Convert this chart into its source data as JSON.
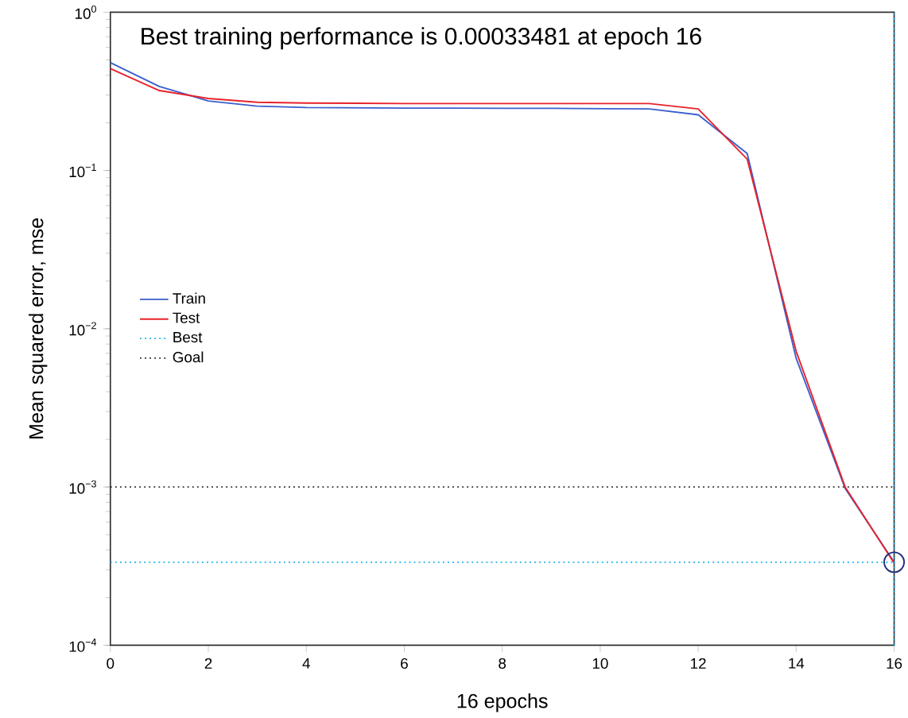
{
  "chart_data": {
    "type": "line",
    "title": "Best training performance is 0.00033481 at epoch 16",
    "xlabel": "16 epochs",
    "ylabel": "Mean squared error, mse",
    "log": "y",
    "xlim": [
      0,
      16
    ],
    "ylim": [
      0.0001,
      1
    ],
    "xticks": [
      0,
      2,
      4,
      6,
      8,
      10,
      12,
      14,
      16
    ],
    "yticks": [
      {
        "value": 0.0001,
        "label": "10$^{−4}$"
      },
      {
        "value": 0.001,
        "label": "10$^{−3}$"
      },
      {
        "value": 0.01,
        "label": "10$^{−2}$"
      },
      {
        "value": 0.1,
        "label": "10$^{−1}$"
      },
      {
        "value": 1,
        "label": "10$^{0}$"
      }
    ],
    "legend": "left",
    "x": [
      0,
      1,
      2,
      3,
      4,
      5,
      6,
      7,
      8,
      9,
      10,
      11,
      12,
      13,
      14,
      15,
      16
    ],
    "series": [
      {
        "name": "Train",
        "color": "#3a5fcd",
        "values": [
          0.48,
          0.34,
          0.275,
          0.255,
          0.25,
          0.249,
          0.248,
          0.248,
          0.247,
          0.247,
          0.246,
          0.245,
          0.225,
          0.128,
          0.0065,
          0.00098,
          0.00033481
        ]
      },
      {
        "name": "Test",
        "color": "#e8222a",
        "values": [
          0.44,
          0.32,
          0.285,
          0.27,
          0.267,
          0.266,
          0.265,
          0.265,
          0.265,
          0.265,
          0.265,
          0.265,
          0.245,
          0.118,
          0.0072,
          0.001,
          0.00033
        ]
      },
      {
        "type": "scatter",
        "marker": "circle",
        "color": "#1f2a7a",
        "x": [
          16
        ],
        "values": [
          0.00033481
        ]
      }
    ],
    "ref_lines": [
      {
        "axis": "y",
        "value": 0.00033481,
        "label": "Best",
        "color": "#1ab2ee",
        "line_style": "dotted"
      },
      {
        "axis": "y",
        "value": 0.001,
        "label": "Goal",
        "color": "#333333",
        "line_style": "dotted"
      },
      {
        "axis": "x",
        "value": 16,
        "color": "#1ab2ee",
        "line_style": "dotted"
      }
    ]
  }
}
